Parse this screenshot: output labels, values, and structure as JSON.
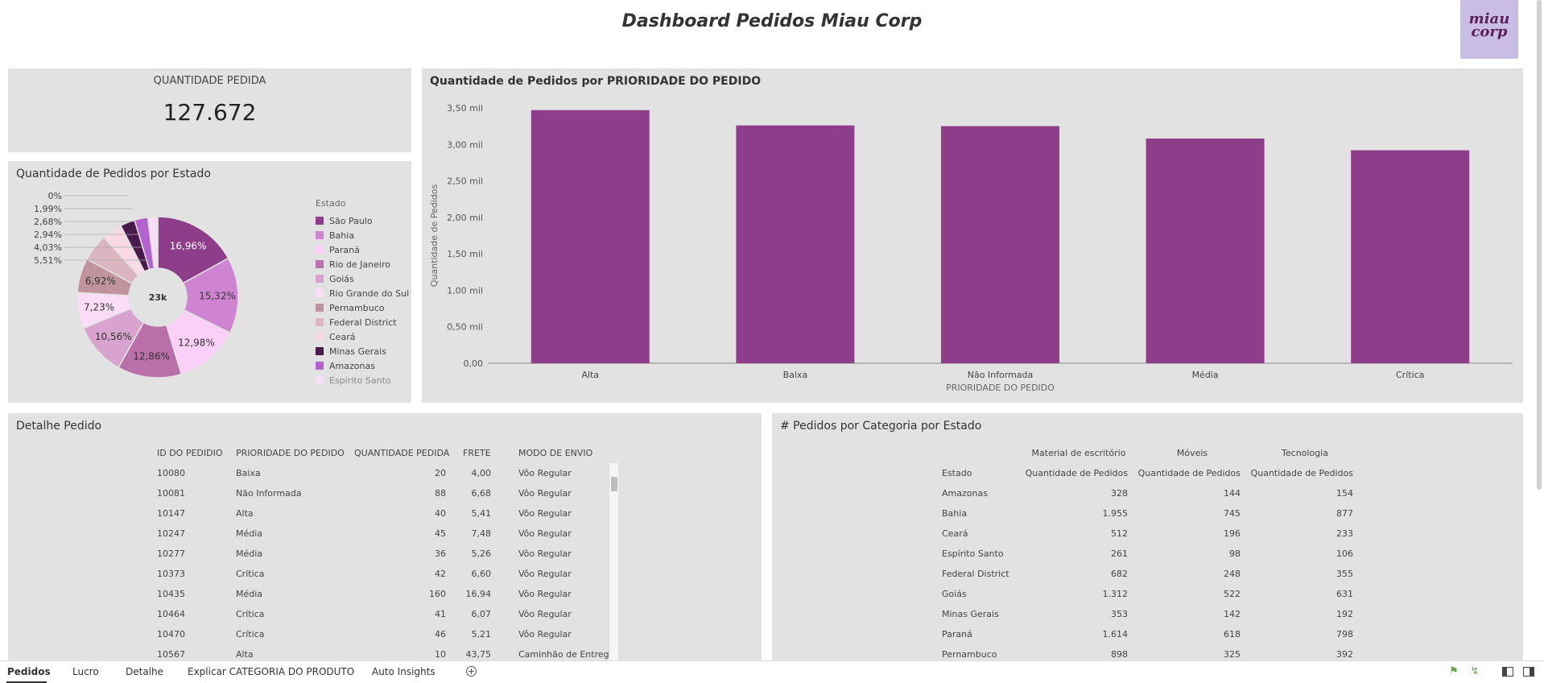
{
  "header": {
    "title": "Dashboard Pedidos Miau Corp",
    "logo_text": "miau corp"
  },
  "kpi": {
    "label": "QUANTIDADE PEDIDA",
    "value": "127.672"
  },
  "donut": {
    "title": "Quantidade de Pedidos por Estado",
    "center_label": "23k",
    "legend_title": "Estado",
    "outside_labels": [
      "0%",
      "1,99%",
      "2,68%",
      "2,94%",
      "4,03%",
      "5,51%"
    ]
  },
  "bar": {
    "title": "Quantidade de Pedidos por PRIORIDADE DO PEDIDO",
    "xlabel": "PRIORIDADE DO PEDIDO",
    "ylabel": "Quantidade de Pedidos",
    "y_ticks": [
      "0,00",
      "0,50 mil",
      "1,00 mil",
      "1,50 mil",
      "2,00 mil",
      "2,50 mil",
      "3,00 mil",
      "3,50 mil"
    ]
  },
  "chart_data": [
    {
      "type": "pie",
      "title": "Quantidade de Pedidos por Estado",
      "categories": [
        "São Paulo",
        "Bahia",
        "Paraná",
        "Rio de Janeiro",
        "Goiás",
        "Rio Grande do Sul",
        "Pernambuco",
        "Federal District",
        "Ceará",
        "Minas Gerais",
        "Amazonas",
        "Espírito Santo"
      ],
      "values": [
        16.96,
        15.32,
        12.98,
        12.86,
        10.56,
        7.23,
        6.92,
        5.51,
        4.03,
        2.94,
        2.68,
        1.99
      ],
      "labels": [
        "16,96%",
        "15,32%",
        "12,98%",
        "12,86%",
        "10,56%",
        "7,23%",
        "6,92%",
        "5,51%",
        "4,03%",
        "2,94%",
        "2,68%",
        "1,99%"
      ],
      "colors": [
        "#8e3d8b",
        "#cf84d1",
        "#fbd0f8",
        "#b96fa8",
        "#d8a4cf",
        "#fcdcf6",
        "#c0949f",
        "#dbb6c0",
        "#f9d9e6",
        "#4b1a4d",
        "#b462cf",
        "#f4dff4"
      ]
    },
    {
      "type": "bar",
      "title": "Quantidade de Pedidos por PRIORIDADE DO PEDIDO",
      "categories": [
        "Alta",
        "Baixa",
        "Não Informada",
        "Média",
        "Crítica"
      ],
      "values": [
        3470,
        3260,
        3250,
        3080,
        2920
      ],
      "xlabel": "PRIORIDADE DO PEDIDO",
      "ylabel": "Quantidade de Pedidos",
      "ylim": [
        0,
        3500
      ],
      "color": "#8e3d8b"
    }
  ],
  "detalhe": {
    "title": "Detalhe Pedido",
    "columns": [
      "ID DO PEDIDIO",
      "PRIORIDADE DO PEDIDO",
      "QUANTIDADE PEDIDA",
      "FRETE",
      "MODO DE ENVIO"
    ],
    "rows": [
      [
        "10080",
        "Baixa",
        "20",
        "4,00",
        "Vôo Regular"
      ],
      [
        "10081",
        "Não Informada",
        "88",
        "6,68",
        "Vôo Regular"
      ],
      [
        "10147",
        "Alta",
        "40",
        "5,41",
        "Vôo Regular"
      ],
      [
        "10247",
        "Média",
        "45",
        "7,48",
        "Vôo Regular"
      ],
      [
        "10277",
        "Média",
        "36",
        "5,26",
        "Vôo Regular"
      ],
      [
        "10373",
        "Crítica",
        "42",
        "6,60",
        "Vôo Regular"
      ],
      [
        "10435",
        "Média",
        "160",
        "16,94",
        "Vôo Regular"
      ],
      [
        "10464",
        "Crítica",
        "41",
        "6,07",
        "Vôo Regular"
      ],
      [
        "10470",
        "Crítica",
        "46",
        "5,21",
        "Vôo Regular"
      ],
      [
        "10567",
        "Alta",
        "10",
        "43,75",
        "Caminhão de Entrega"
      ]
    ]
  },
  "categoria": {
    "title": "# Pedidos por Categoria por Estado",
    "groups": [
      "Material de escritório",
      "Móveis",
      "Tecnologia"
    ],
    "row_header": "Estado",
    "measure": "Quantidade de Pedidos",
    "rows": [
      [
        "Amazonas",
        "328",
        "144",
        "154"
      ],
      [
        "Bahia",
        "1.955",
        "745",
        "877"
      ],
      [
        "Ceará",
        "512",
        "196",
        "233"
      ],
      [
        "Espírito Santo",
        "261",
        "98",
        "106"
      ],
      [
        "Federal District",
        "682",
        "248",
        "355"
      ],
      [
        "Goiás",
        "1.312",
        "522",
        "631"
      ],
      [
        "Minas Gerais",
        "353",
        "142",
        "192"
      ],
      [
        "Paraná",
        "1.614",
        "618",
        "798"
      ],
      [
        "Pernambuco",
        "898",
        "325",
        "392"
      ]
    ]
  },
  "tabs": [
    "Pedidos",
    "Lucro",
    "Detalhe",
    "Explicar CATEGORIA DO PRODUTO",
    "Auto Insights"
  ],
  "icons": [
    "add-tab-icon",
    "pin-icon",
    "lightning-icon",
    "layout-left-icon",
    "layout-right-icon"
  ]
}
